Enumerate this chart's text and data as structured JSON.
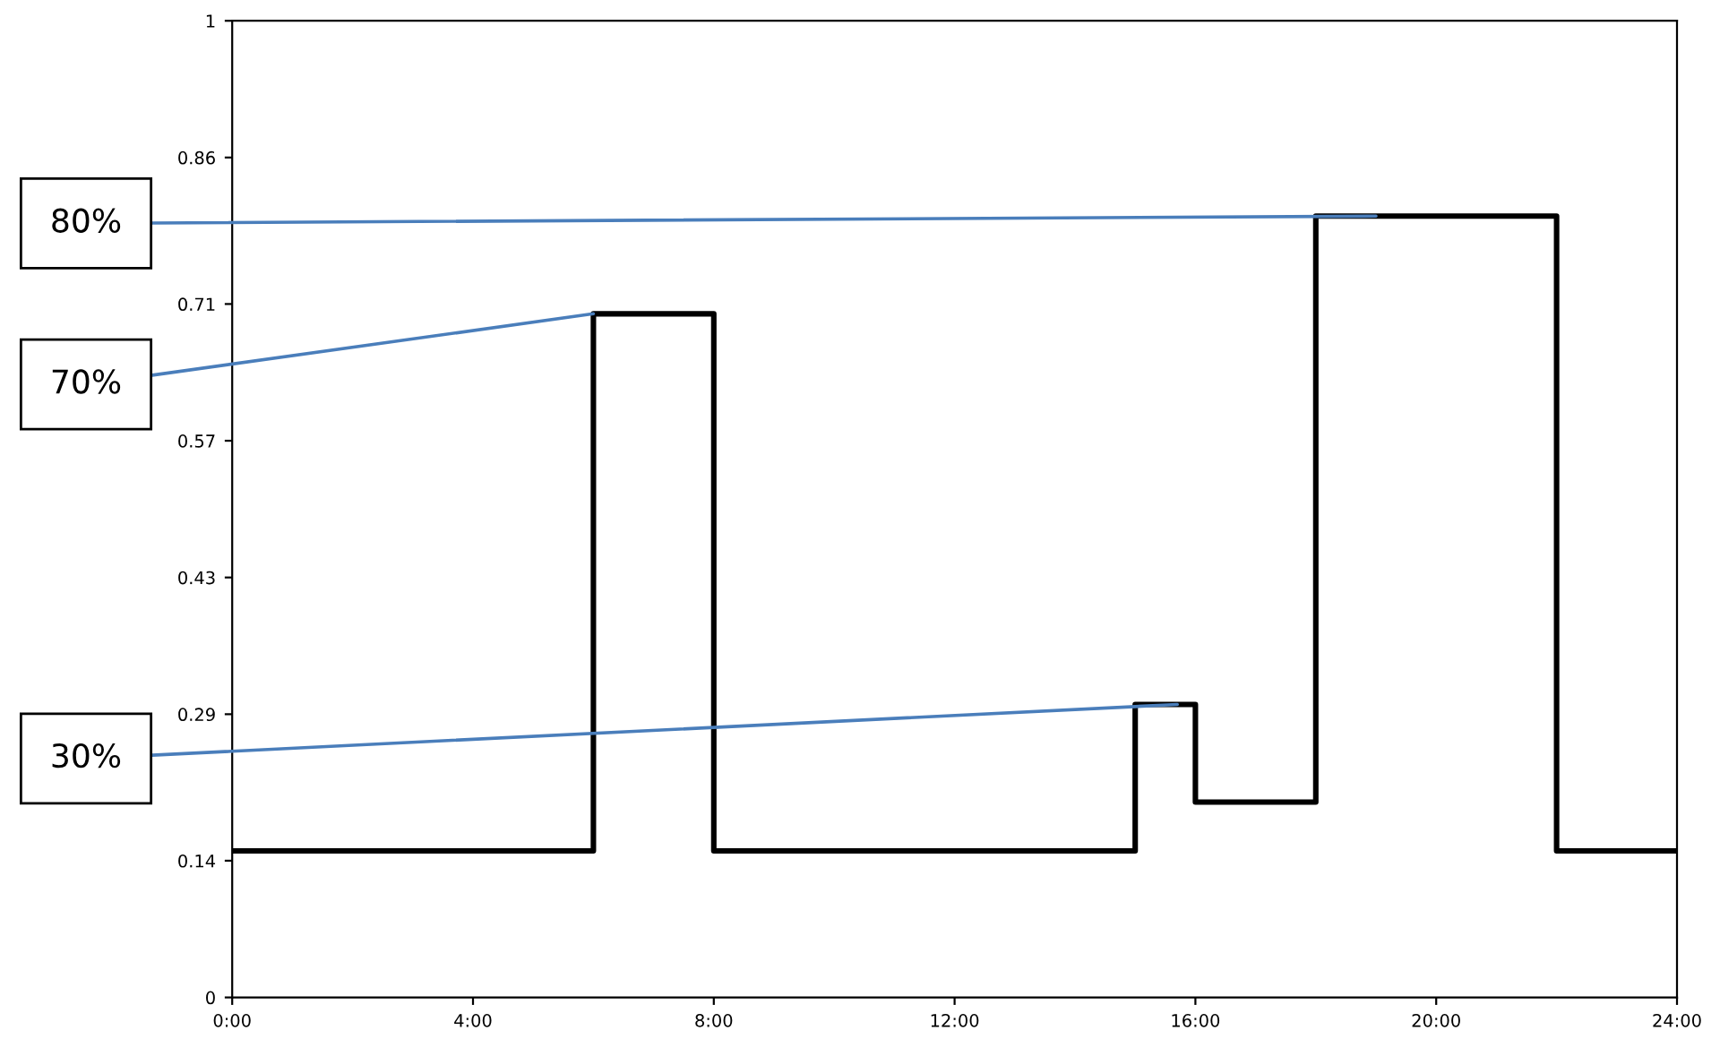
{
  "chart_data": {
    "type": "step",
    "x": [
      0,
      6,
      8,
      15,
      16,
      18,
      22,
      24
    ],
    "values": [
      0.15,
      0.7,
      0.15,
      0.3,
      0.2,
      0.8,
      0.15,
      0.15
    ],
    "color": "#000000",
    "xlim": [
      0,
      24
    ],
    "xticks": [
      {
        "value": 0,
        "label": "0:00"
      },
      {
        "value": 4,
        "label": "4:00"
      },
      {
        "value": 8,
        "label": "8:00"
      },
      {
        "value": 12,
        "label": "12:00"
      },
      {
        "value": 16,
        "label": "16:00"
      },
      {
        "value": 20,
        "label": "20:00"
      },
      {
        "value": 24,
        "label": "24:00"
      }
    ],
    "ylim": [
      0,
      1
    ],
    "yticks": [
      0,
      0.14,
      0.29,
      0.43,
      0.57,
      0.71,
      0.86,
      1
    ],
    "annotations": [
      {
        "text": "80%",
        "x": 19,
        "y": 0.8
      },
      {
        "text": "70%",
        "x": 6,
        "y": 0.7
      },
      {
        "text": "30%",
        "x": 15.7,
        "y": 0.3
      }
    ],
    "grid": false,
    "legend": false
  }
}
